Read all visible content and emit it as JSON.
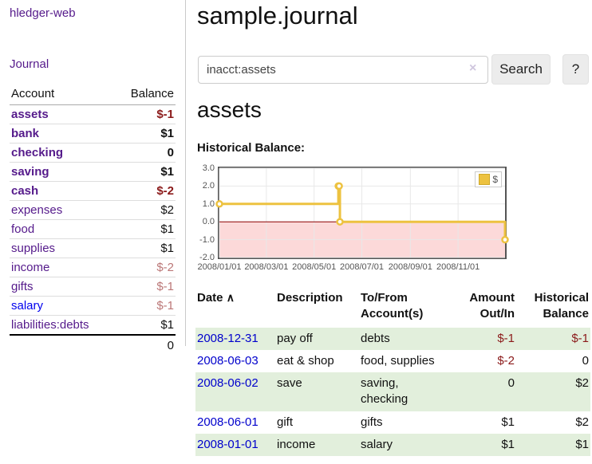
{
  "brand": {
    "label": "hledger-web"
  },
  "sidebar": {
    "journal_link": "Journal",
    "header": {
      "account": "Account",
      "balance": "Balance"
    },
    "accounts": [
      {
        "name": "assets",
        "balance": "$-1"
      },
      {
        "name": "bank",
        "balance": "$1"
      },
      {
        "name": "checking",
        "balance": "0"
      },
      {
        "name": "saving",
        "balance": "$1"
      },
      {
        "name": "cash",
        "balance": "$-2"
      },
      {
        "name": "expenses",
        "balance": "$2"
      },
      {
        "name": "food",
        "balance": "$1"
      },
      {
        "name": "supplies",
        "balance": "$1"
      },
      {
        "name": "income",
        "balance": "$-2"
      },
      {
        "name": "gifts",
        "balance": "$-1"
      },
      {
        "name": "salary",
        "balance": "$-1"
      },
      {
        "name": "liabilities:debts",
        "balance": "$1"
      }
    ],
    "total": "0"
  },
  "main": {
    "title": "sample.journal",
    "search": {
      "value": "inacct:assets",
      "clear_icon": "×",
      "button": "Search",
      "help": "?"
    },
    "account_heading": "assets",
    "chart_title": "Historical Balance:"
  },
  "chart_data": {
    "type": "line",
    "title": "Historical Balance",
    "step": true,
    "legend": "$",
    "legend_position": "top-right",
    "series": [
      {
        "name": "$",
        "color": "#edc240",
        "points": [
          [
            "2008-01-01",
            1
          ],
          [
            "2008-06-01",
            2
          ],
          [
            "2008-06-02",
            2
          ],
          [
            "2008-06-03",
            0
          ],
          [
            "2008-12-31",
            -1
          ]
        ]
      }
    ],
    "x_range": [
      "2008-01-01",
      "2008-12-31"
    ],
    "ylim": [
      -2,
      3
    ],
    "x_ticks": [
      "2008/01/01",
      "2008/03/01",
      "2008/05/01",
      "2008/07/01",
      "2008/09/01",
      "2008/11/01"
    ],
    "y_ticks": [
      "3.0",
      "2.0",
      "1.0",
      "0.0",
      "-1.0",
      "-2.0"
    ],
    "grid": true,
    "zero_line_color": "#8b0000",
    "negative_region_color": "#fcd9d9"
  },
  "table": {
    "headers": {
      "date": "Date",
      "sort_indicator": "∧",
      "description": "Description",
      "accounts": "To/From Account(s)",
      "amount": "Amount Out/In",
      "balance": "Historical Balance"
    },
    "rows": [
      {
        "date": "2008-12-31",
        "description": "pay off",
        "accounts": "debts",
        "amount": "$-1",
        "balance": "$-1"
      },
      {
        "date": "2008-06-03",
        "description": "eat & shop",
        "accounts": "food, supplies",
        "amount": "$-2",
        "balance": "0"
      },
      {
        "date": "2008-06-02",
        "description": "save",
        "accounts": "saving, checking",
        "amount": "0",
        "balance": "$2"
      },
      {
        "date": "2008-06-01",
        "description": "gift",
        "accounts": "gifts",
        "amount": "$1",
        "balance": "$2"
      },
      {
        "date": "2008-01-01",
        "description": "income",
        "accounts": "salary",
        "amount": "$1",
        "balance": "$1"
      }
    ]
  }
}
